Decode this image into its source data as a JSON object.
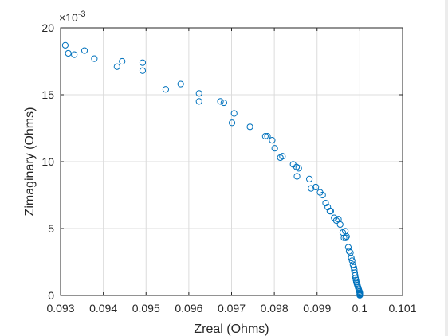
{
  "chart_data": {
    "type": "scatter",
    "xlabel": "Zreal (Ohms)",
    "ylabel": "Zimaginary (Ohms)",
    "y_exponent_prefix": "×10",
    "y_exponent_power": "-3",
    "xlim": [
      0.093,
      0.101
    ],
    "ylim": [
      0,
      20
    ],
    "grid": true,
    "x_ticks": [
      "0.093",
      "0.094",
      "0.095",
      "0.096",
      "0.097",
      "0.098",
      "0.099",
      "0.1",
      "0.101"
    ],
    "y_ticks": [
      "0",
      "5",
      "10",
      "15",
      "20"
    ],
    "marker_color": "#0072bd",
    "series": [
      {
        "marker": "circle-open",
        "x": [
          0.09311,
          0.09318,
          0.09332,
          0.09356,
          0.09379,
          0.09432,
          0.09444,
          0.09492,
          0.09492,
          0.09546,
          0.09581,
          0.09624,
          0.09624,
          0.09674,
          0.09682,
          0.09701,
          0.09706,
          0.09743,
          0.09779,
          0.09784,
          0.09795,
          0.09801,
          0.09814,
          0.09819,
          0.09844,
          0.09852,
          0.09857,
          0.09853,
          0.09882,
          0.09886,
          0.09897,
          0.09907,
          0.09913,
          0.0992,
          0.09925,
          0.0993,
          0.09932,
          0.0994,
          0.09945,
          0.0995,
          0.09954,
          0.0996,
          0.09963,
          0.09966,
          0.09967,
          0.09969,
          0.09973,
          0.09975,
          0.09978,
          0.0998,
          0.09982,
          0.09984,
          0.09986,
          0.09987,
          0.09988,
          0.09989,
          0.0999,
          0.09991,
          0.09992,
          0.09993,
          0.09994,
          0.09995,
          0.09996,
          0.09997,
          0.09998,
          0.09999,
          0.1,
          0.1,
          0.1,
          0.1,
          0.1,
          0.1
        ],
        "y": [
          18.7,
          18.1,
          18.0,
          18.3,
          17.7,
          17.1,
          17.5,
          17.4,
          16.8,
          15.4,
          15.8,
          15.1,
          14.5,
          14.5,
          14.4,
          12.9,
          13.6,
          12.6,
          11.9,
          11.9,
          11.6,
          11.0,
          10.3,
          10.4,
          9.8,
          9.6,
          9.5,
          8.9,
          8.7,
          8.0,
          8.1,
          7.7,
          7.5,
          6.9,
          6.6,
          6.3,
          6.3,
          5.8,
          5.6,
          5.7,
          5.3,
          4.7,
          4.3,
          4.8,
          4.3,
          4.4,
          3.6,
          3.3,
          3.2,
          2.8,
          2.6,
          2.3,
          2.1,
          1.9,
          1.7,
          1.5,
          1.3,
          1.15,
          1.0,
          0.9,
          0.8,
          0.7,
          0.6,
          0.5,
          0.4,
          0.3,
          0.22,
          0.15,
          0.1,
          0.06,
          0.03,
          0.01
        ]
      }
    ]
  }
}
